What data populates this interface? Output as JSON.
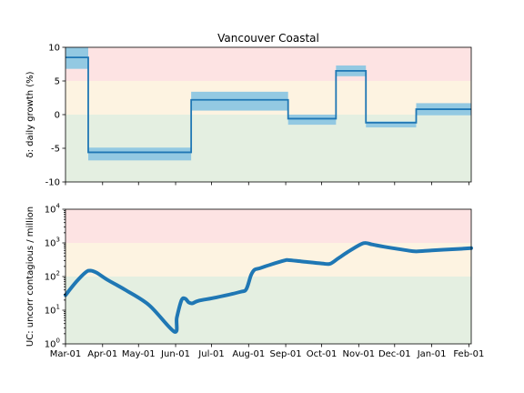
{
  "chart_data": [
    {
      "type": "line",
      "title": "Vancouver Coastal",
      "ylabel": "δ: daily growth (%)",
      "ylim": [
        -10,
        10
      ],
      "yticks": [
        "10",
        "5",
        "0",
        "-5",
        "-10"
      ],
      "ytick_values": [
        10,
        5,
        0,
        -5,
        -10
      ],
      "xlim": [
        "2020-03-01",
        "2021-02-03"
      ],
      "zones": [
        {
          "from": 5,
          "to": 10,
          "color": "#fde3e3"
        },
        {
          "from": 0,
          "to": 5,
          "color": "#fdf3e1"
        },
        {
          "from": -10,
          "to": 0,
          "color": "#e4efe1"
        }
      ],
      "line_color": "#1f77b4",
      "band_color": "#93c9e2",
      "segments": [
        {
          "start": "2020-03-01",
          "end": "2020-03-20",
          "value": 8.5,
          "low": 6.8,
          "high": 10.0
        },
        {
          "start": "2020-03-20",
          "end": "2020-06-14",
          "value": -5.6,
          "low": -6.8,
          "high": -4.9
        },
        {
          "start": "2020-06-14",
          "end": "2020-09-03",
          "value": 2.2,
          "low": 0.6,
          "high": 3.4
        },
        {
          "start": "2020-09-03",
          "end": "2020-10-13",
          "value": -0.6,
          "low": -1.5,
          "high": 0.0
        },
        {
          "start": "2020-10-13",
          "end": "2020-11-07",
          "value": 6.5,
          "low": 5.7,
          "high": 7.3
        },
        {
          "start": "2020-11-07",
          "end": "2020-12-19",
          "value": -1.2,
          "low": -1.9,
          "high": -1.0
        },
        {
          "start": "2020-12-19",
          "end": "2021-02-03",
          "value": 0.8,
          "low": -0.1,
          "high": 1.7
        }
      ]
    },
    {
      "type": "line",
      "title": "",
      "ylabel": "UC: uncorr contagious / million",
      "yscale": "log",
      "ylim": [
        1,
        10000
      ],
      "yticks": [
        {
          "base": "10",
          "exp": "4",
          "value": 10000
        },
        {
          "base": "10",
          "exp": "3",
          "value": 1000
        },
        {
          "base": "10",
          "exp": "2",
          "value": 100
        },
        {
          "base": "10",
          "exp": "1",
          "value": 10
        },
        {
          "base": "10",
          "exp": "0",
          "value": 1
        }
      ],
      "xlim": [
        "2020-03-01",
        "2021-02-03"
      ],
      "zones": [
        {
          "from": 1000,
          "to": 10000,
          "color": "#fde3e3"
        },
        {
          "from": 100,
          "to": 1000,
          "color": "#fdf3e1"
        },
        {
          "from": 1,
          "to": 100,
          "color": "#e4efe1"
        }
      ],
      "line_color": "#1f77b4",
      "series": [
        {
          "x": [
            "2020-03-01",
            "2020-03-10",
            "2020-03-18",
            "2020-03-22",
            "2020-03-27",
            "2020-04-05",
            "2020-04-20",
            "2020-05-10",
            "2020-05-31",
            "2020-06-02",
            "2020-06-06",
            "2020-06-09",
            "2020-06-12",
            "2020-06-15",
            "2020-06-20",
            "2020-07-05",
            "2020-07-25",
            "2020-07-30",
            "2020-08-03",
            "2020-08-06",
            "2020-08-10",
            "2020-08-20",
            "2020-08-31",
            "2020-09-03",
            "2020-09-15",
            "2020-10-01",
            "2020-10-08",
            "2020-10-15",
            "2020-10-25",
            "2020-11-05",
            "2020-11-12",
            "2020-11-22",
            "2020-12-10",
            "2020-12-19",
            "2021-01-01",
            "2021-01-20",
            "2021-02-03"
          ],
          "y": [
            28,
            70,
            135,
            150,
            130,
            80,
            40,
            14,
            2.3,
            6,
            20,
            22,
            17,
            16,
            19,
            24,
            35,
            42,
            110,
            160,
            175,
            230,
            300,
            310,
            280,
            245,
            240,
            350,
            600,
            980,
            900,
            770,
            610,
            560,
            600,
            650,
            700
          ]
        }
      ]
    }
  ],
  "shared_xticks": [
    {
      "label": "Mar-01",
      "date": "2020-03-01"
    },
    {
      "label": "Apr-01",
      "date": "2020-04-01"
    },
    {
      "label": "May-01",
      "date": "2020-05-01"
    },
    {
      "label": "Jun-01",
      "date": "2020-06-01"
    },
    {
      "label": "Jul-01",
      "date": "2020-07-01"
    },
    {
      "label": "Aug-01",
      "date": "2020-08-01"
    },
    {
      "label": "Sep-01",
      "date": "2020-09-01"
    },
    {
      "label": "Oct-01",
      "date": "2020-10-01"
    },
    {
      "label": "Nov-01",
      "date": "2020-11-01"
    },
    {
      "label": "Dec-01",
      "date": "2020-12-01"
    },
    {
      "label": "Jan-01",
      "date": "2021-01-01"
    },
    {
      "label": "Feb-01",
      "date": "2021-02-01"
    }
  ]
}
